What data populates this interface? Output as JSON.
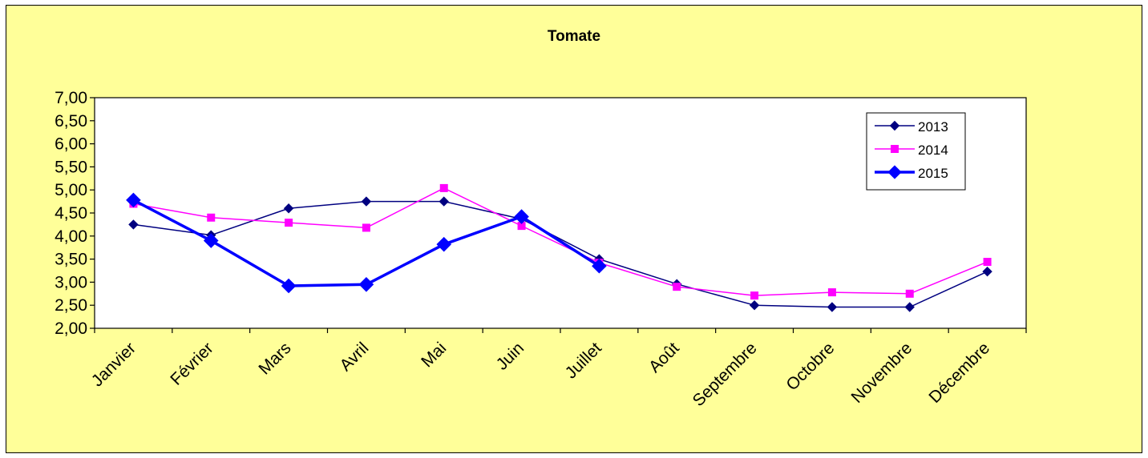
{
  "chart_data": {
    "type": "line",
    "title": "Tomate",
    "xlabel": "",
    "ylabel": "",
    "categories": [
      "Janvier",
      "Février",
      "Mars",
      "Avril",
      "Mai",
      "Juin",
      "Juillet",
      "Août",
      "Septembre",
      "Octobre",
      "Novembre",
      "Décembre"
    ],
    "ylim": [
      2.0,
      7.0
    ],
    "y_ticks": [
      "2,00",
      "2,50",
      "3,00",
      "3,50",
      "4,00",
      "4,50",
      "5,00",
      "5,50",
      "6,00",
      "6,50",
      "7,00"
    ],
    "legend_position": "top-right",
    "grid": false,
    "plot_background": "#ffffff",
    "chart_background": "#ffff99",
    "series": [
      {
        "name": "2013",
        "color": "#000080",
        "marker": "diamond",
        "line_width": 1.5,
        "values": [
          4.25,
          4.02,
          4.6,
          4.75,
          4.75,
          4.37,
          3.5,
          2.96,
          2.5,
          2.46,
          2.46,
          3.23
        ]
      },
      {
        "name": "2014",
        "color": "#ff00ff",
        "marker": "square",
        "line_width": 1.5,
        "values": [
          4.7,
          4.4,
          4.29,
          4.18,
          5.04,
          4.22,
          3.42,
          2.9,
          2.71,
          2.78,
          2.75,
          3.44
        ]
      },
      {
        "name": "2015",
        "color": "#0000ff",
        "marker": "diamond",
        "line_width": 3.5,
        "values": [
          4.78,
          3.9,
          2.92,
          2.95,
          3.82,
          4.42,
          3.35,
          null,
          null,
          null,
          null,
          null
        ]
      }
    ]
  }
}
